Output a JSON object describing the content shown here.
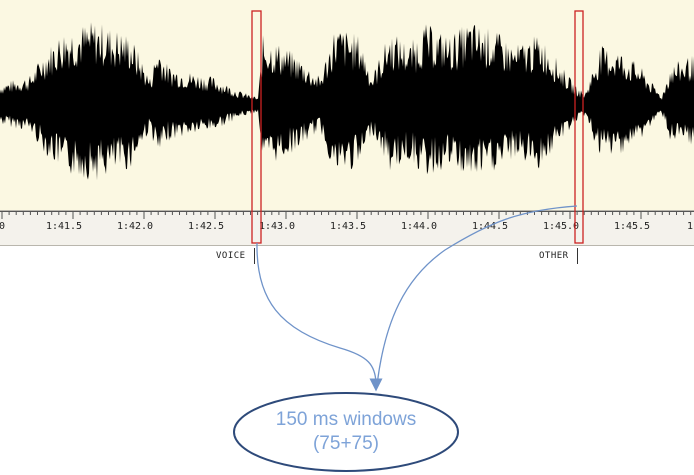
{
  "timeline": {
    "ticks": [
      "0",
      "1:41.5",
      "1:42.0",
      "1:42.5",
      "1:43.0",
      "1:43.5",
      "1:44.0",
      "1:44.5",
      "1:45.0",
      "1:45.5",
      "1"
    ]
  },
  "segments": {
    "voice_label": "VOICE",
    "other_label": "OTHER"
  },
  "callout": {
    "line1": "150 ms windows",
    "line2": "(75+75)"
  },
  "colors": {
    "waveform_bg": "#fbf8e2",
    "waveform": "#000000",
    "window_box": "#cc2222",
    "arrow": "#6f93c9",
    "callout_text": "#7ea3d8",
    "ellipse_stroke": "#2e4a7a"
  }
}
